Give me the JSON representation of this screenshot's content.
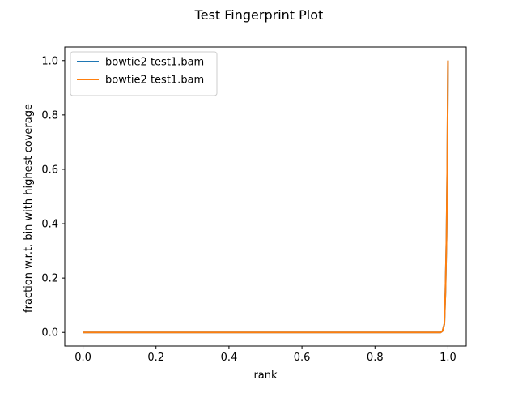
{
  "chart_data": {
    "type": "line",
    "title": "Test Fingerprint Plot",
    "xlabel": "rank",
    "ylabel": "fraction w.r.t. bin with highest coverage",
    "xlim": [
      -0.05,
      1.05
    ],
    "ylim": [
      -0.05,
      1.05
    ],
    "xticks": [
      0.0,
      0.2,
      0.4,
      0.6,
      0.8,
      1.0
    ],
    "xtick_labels": [
      "0.0",
      "0.2",
      "0.4",
      "0.6",
      "0.8",
      "1.0"
    ],
    "yticks": [
      0.0,
      0.2,
      0.4,
      0.6,
      0.8,
      1.0
    ],
    "ytick_labels": [
      "0.0",
      "0.2",
      "0.4",
      "0.6",
      "0.8",
      "1.0"
    ],
    "grid": false,
    "legend_position": "upper-left",
    "series": [
      {
        "name": "bowtie2 test1.bam",
        "color": "#1f77b4",
        "x": [
          0.0,
          0.2,
          0.4,
          0.6,
          0.8,
          0.9,
          0.98,
          0.985,
          0.99,
          0.993,
          0.996,
          0.998,
          1.0
        ],
        "y": [
          0.0,
          0.0,
          0.0,
          0.0,
          0.0,
          0.0,
          0.0,
          0.005,
          0.03,
          0.15,
          0.35,
          0.6,
          1.0
        ]
      },
      {
        "name": "bowtie2 test1.bam",
        "color": "#ff7f0e",
        "x": [
          0.0,
          0.2,
          0.4,
          0.6,
          0.8,
          0.9,
          0.98,
          0.985,
          0.99,
          0.993,
          0.996,
          0.998,
          1.0
        ],
        "y": [
          0.0,
          0.0,
          0.0,
          0.0,
          0.0,
          0.0,
          0.0,
          0.005,
          0.03,
          0.15,
          0.35,
          0.6,
          1.0
        ]
      }
    ]
  }
}
